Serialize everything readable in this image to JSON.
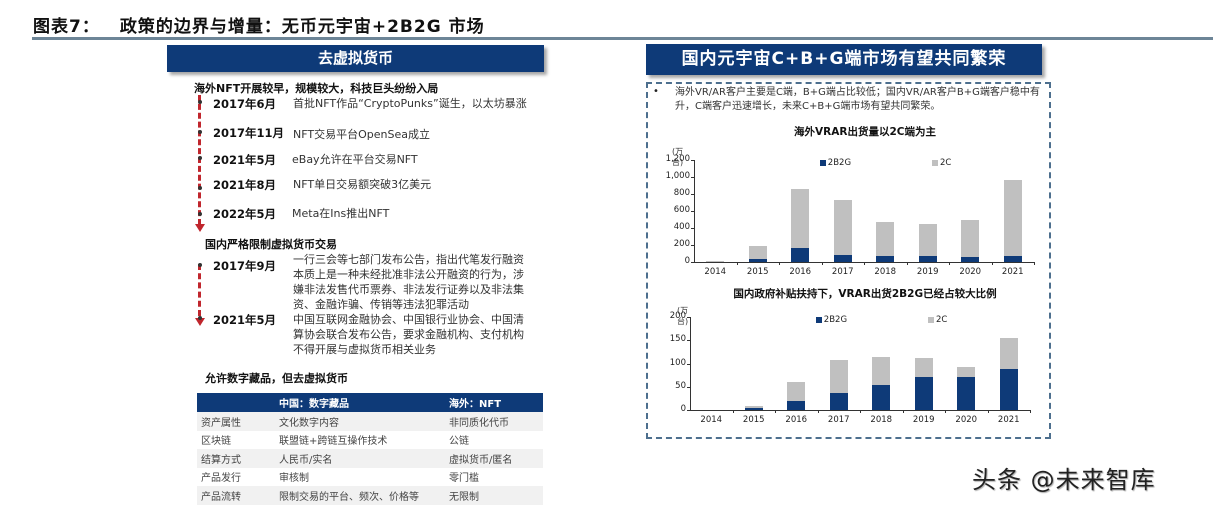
{
  "figure": {
    "number": "图表7：",
    "title": "政策的边界与增量：无币元宇宙+2B2G 市场"
  },
  "left": {
    "banner": "去虚拟货币",
    "section1": {
      "heading": "海外NFT开展较早，规模较大，科技巨头纷纷入局",
      "events": [
        {
          "date": "2017年6月",
          "text": "首批NFT作品“CryptoPunks”诞生，以太坊暴涨"
        },
        {
          "date": "2017年11月",
          "text": "NFT交易平台OpenSea成立"
        },
        {
          "date": "2021年5月",
          "text": "eBay允许在平台交易NFT"
        },
        {
          "date": "2021年8月",
          "text": "NFT单日交易额突破3亿美元"
        },
        {
          "date": "2022年5月",
          "text": "Meta在Ins推出NFT"
        }
      ]
    },
    "section2": {
      "heading": "国内严格限制虚拟货币交易",
      "events": [
        {
          "date": "2017年9月",
          "text": "一行三会等七部门发布公告，指出代笔发行融资本质上是一种未经批准非法公开融资的行为，涉嫌非法发售代币票券、非法发行证券以及非法集资、金融诈骗、传销等违法犯罪活动"
        },
        {
          "date": "2021年5月",
          "text": "中国互联网金融协会、中国银行业协会、中国清算协会联合发布公告，要求金融机构、支付机构不得开展与虚拟货币相关业务"
        }
      ]
    },
    "section3": {
      "heading": "允许数字藏品，但去虚拟货币",
      "table": {
        "headers": [
          "",
          "中国：数字藏品",
          "海外：NFT"
        ],
        "rows": [
          [
            "资产属性",
            "文化数字内容",
            "非同质化代币"
          ],
          [
            "区块链",
            "联盟链+跨链互操作技术",
            "公链"
          ],
          [
            "结算方式",
            "人民币/实名",
            "虚拟货币/匿名"
          ],
          [
            "产品发行",
            "审核制",
            "零门槛"
          ],
          [
            "产品流转",
            "限制交易的平台、频次、价格等",
            "无限制"
          ]
        ]
      }
    }
  },
  "right": {
    "banner": "国内元宇宙C+B+G端市场有望共同繁荣",
    "bullet_symbol": "•",
    "bullet_text": "海外VR/AR客户主要是C端，B+G端占比较低；国内VR/AR客户B+G端客户稳中有升，C端客户迅速增长，未来C+B+G端市场有望共同繁荣。"
  },
  "colors": {
    "navy": "#0e3a78",
    "gray_bar": "#c0c0c0",
    "timeline_red": "#c0262d",
    "dash_border": "#4d6f8e"
  },
  "chart_data": [
    {
      "type": "bar",
      "stacked": true,
      "title": "海外VRAR出货量以2C端为主",
      "unit": "(万台)",
      "categories": [
        "2014",
        "2015",
        "2016",
        "2017",
        "2018",
        "2019",
        "2020",
        "2021"
      ],
      "series": [
        {
          "name": "2B2G",
          "color": "#0e3a78",
          "values": [
            0,
            40,
            165,
            80,
            65,
            65,
            55,
            75
          ]
        },
        {
          "name": "2C",
          "color": "#c0c0c0",
          "values": [
            10,
            145,
            695,
            650,
            410,
            385,
            435,
            895
          ]
        }
      ],
      "yticks": [
        "0",
        "200",
        "400",
        "600",
        "800",
        "1,000",
        "1,200"
      ],
      "ylim": [
        0,
        1200
      ],
      "legend_position": "top",
      "grid": false
    },
    {
      "type": "bar",
      "stacked": true,
      "title": "国内政府补贴扶持下，VRAR出货2B2G已经占较大比例",
      "unit": "(万台)",
      "categories": [
        "2014",
        "2015",
        "2016",
        "2017",
        "2018",
        "2019",
        "2020",
        "2021"
      ],
      "series": [
        {
          "name": "2B2G",
          "color": "#0e3a78",
          "values": [
            0,
            5,
            19,
            37,
            54,
            72,
            71,
            89
          ]
        },
        {
          "name": "2C",
          "color": "#c0c0c0",
          "values": [
            0,
            3,
            41,
            71,
            61,
            40,
            22,
            65
          ]
        }
      ],
      "yticks": [
        "0",
        "50",
        "100",
        "150",
        "200"
      ],
      "ylim": [
        0,
        200
      ],
      "legend_position": "top",
      "grid": false
    }
  ],
  "watermark": "头条 @未来智库"
}
